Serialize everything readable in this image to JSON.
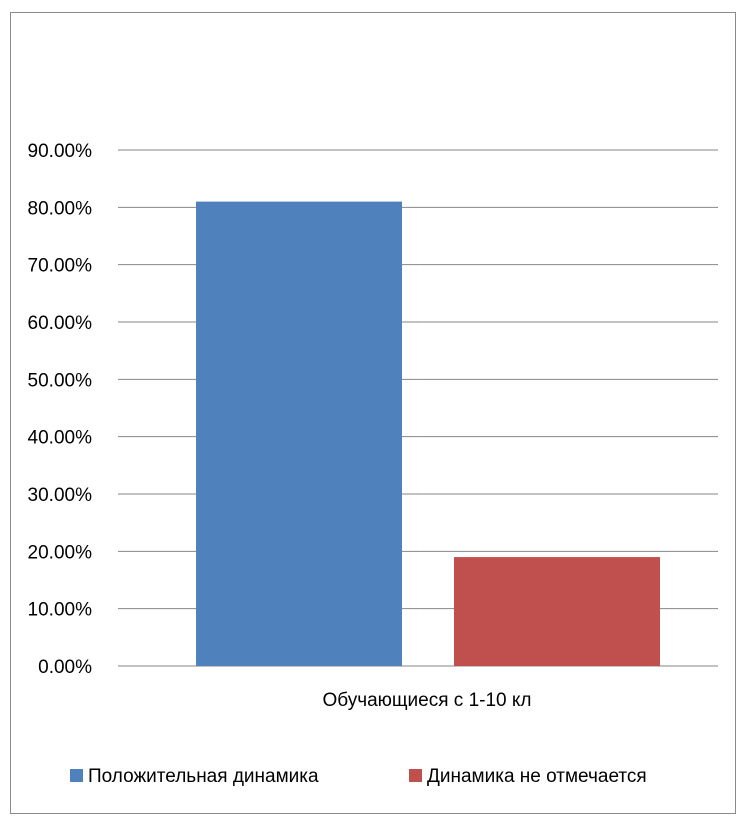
{
  "chart_data": {
    "type": "bar",
    "categories": [
      "Обучающиеся с 1-10 кл"
    ],
    "series": [
      {
        "name": "Положительная динамика",
        "values": [
          0.81
        ],
        "color": "#4F81BD"
      },
      {
        "name": "Динамика не отмечается",
        "values": [
          0.19
        ],
        "color": "#C0504D"
      }
    ],
    "yticks": [
      "0.00%",
      "10.00%",
      "20.00%",
      "30.00%",
      "40.00%",
      "50.00%",
      "60.00%",
      "70.00%",
      "80.00%",
      "90.00%"
    ],
    "ylim": [
      0,
      0.9
    ],
    "grid": true,
    "legend": "bottom"
  }
}
